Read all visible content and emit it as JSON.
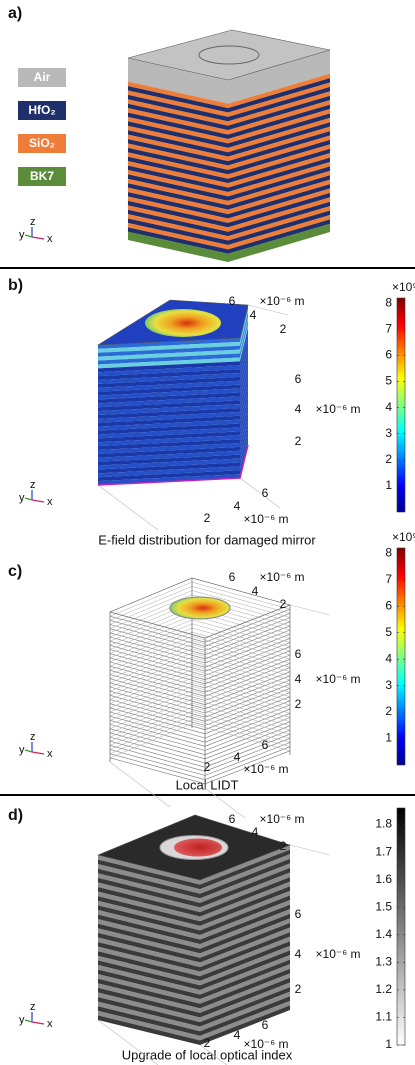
{
  "panels": [
    {
      "label": "a)",
      "legend": [
        {
          "name": "Air",
          "color": "#b9b9b9"
        },
        {
          "name": "HfO₂",
          "color": "#1f2f6b"
        },
        {
          "name": "SiO₂",
          "color": "#ee7d3a"
        },
        {
          "name": "BK7",
          "color": "#5b8c3a"
        }
      ],
      "triad": [
        "y",
        "z",
        "x"
      ]
    },
    {
      "label": "b)",
      "ticks_top": [
        6,
        4,
        2
      ],
      "ticks_right": [
        6,
        4,
        2
      ],
      "ticks_bottom": [
        6,
        4,
        2
      ],
      "unit": "×10⁻⁶ m",
      "colorbar": {
        "colormap": "jet",
        "multiplier": "×10⁹",
        "lim": [
          0,
          8.2
        ],
        "ticks": [
          1,
          2,
          3,
          4,
          5,
          6,
          7,
          8
        ]
      },
      "caption": "E-field distribution for damaged mirror",
      "triad": [
        "y",
        "z",
        "x"
      ]
    },
    {
      "label": "c)",
      "ticks_top": [
        6,
        4,
        2
      ],
      "ticks_right": [
        6,
        4,
        2
      ],
      "ticks_bottom": [
        6,
        4,
        2
      ],
      "unit": "×10⁻⁶ m",
      "colorbar": {
        "colormap": "jet",
        "multiplier": "×10⁹",
        "lim": [
          0,
          8.2
        ],
        "ticks": [
          1,
          2,
          3,
          4,
          5,
          6,
          7,
          8
        ]
      },
      "caption": "Local LIDT",
      "triad": [
        "y",
        "z",
        "x"
      ]
    },
    {
      "label": "d)",
      "ticks_top": [
        6,
        4,
        2
      ],
      "ticks_right": [
        6,
        4,
        2
      ],
      "ticks_bottom": [
        6,
        4,
        2
      ],
      "unit": "×10⁻⁶ m",
      "colorbar": {
        "colormap": "gray",
        "lim": [
          1,
          1.86
        ],
        "ticks": [
          1,
          1.1,
          1.2,
          1.3,
          1.4,
          1.5,
          1.6,
          1.7,
          1.8
        ]
      },
      "caption": "Upgrade of local optical index",
      "triad": [
        "y",
        "z",
        "x"
      ]
    }
  ]
}
